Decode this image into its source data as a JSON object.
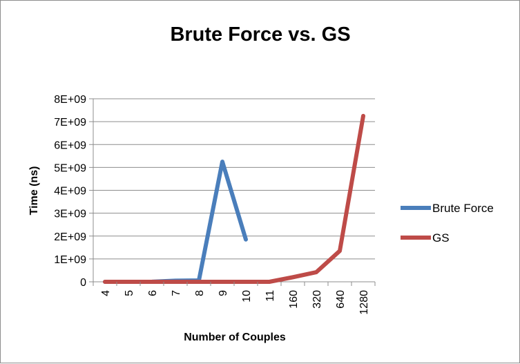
{
  "chart_data": {
    "type": "line",
    "title": "Brute Force vs. GS",
    "xlabel": "Number of Couples",
    "ylabel": "Time (ns)",
    "categories": [
      "4",
      "5",
      "6",
      "7",
      "8",
      "9",
      "10",
      "11",
      "160",
      "320",
      "640",
      "1280"
    ],
    "y_ticks": [
      "0",
      "1E+09",
      "2E+09",
      "3E+09",
      "4E+09",
      "5E+09",
      "6E+09",
      "7E+09",
      "8E+09"
    ],
    "ylim": [
      0,
      8000000000
    ],
    "grid": true,
    "legend_position": "right",
    "series": [
      {
        "name": "Brute Force",
        "color": "#4a7ebb",
        "values": [
          0,
          0,
          5000000,
          50000000,
          60000000,
          5250000000,
          1850000000,
          null,
          null,
          null,
          null,
          null
        ]
      },
      {
        "name": "GS",
        "color": "#be4b48",
        "values": [
          0,
          0,
          0,
          0,
          0,
          0,
          0,
          0,
          200000000,
          420000000,
          1350000000,
          7250000000
        ]
      }
    ]
  }
}
